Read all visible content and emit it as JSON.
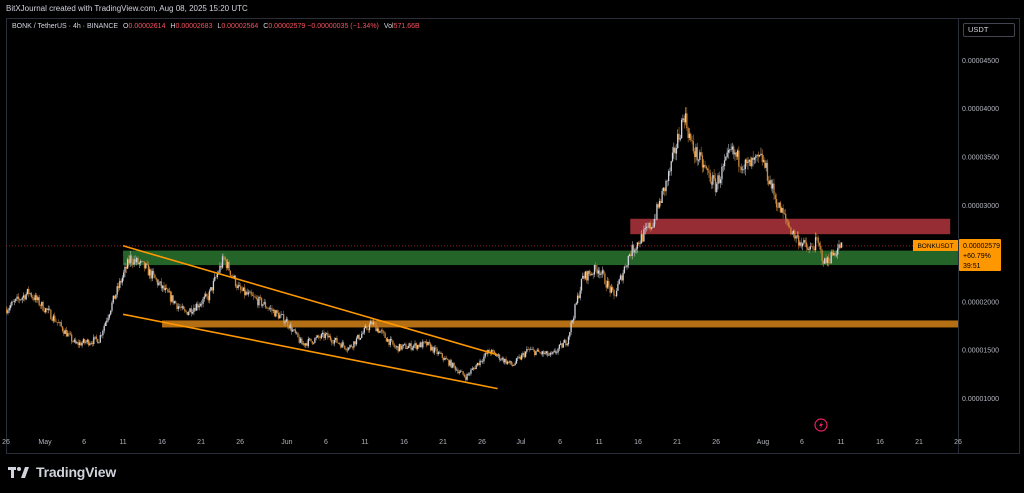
{
  "header": {
    "created_by": "BitXJournal created with TradingView.com, Aug 08, 2025 15:20 UTC"
  },
  "symbol_line": {
    "symbol": "BONK / TetherUS · 4h · BINANCE",
    "open_label": "O",
    "open": "0.00002614",
    "high_label": "H",
    "high": "0.00002683",
    "low_label": "L",
    "low": "0.00002564",
    "close_label": "C",
    "close": "0.00002579",
    "change": "−0.00000035 (−1.34%)",
    "volume_label": "Vol",
    "volume": "571.66B"
  },
  "price_axis": {
    "currency": "USDT"
  },
  "price_badge": {
    "symbol": "BONKUSDT",
    "price": "0.00002579",
    "change": "+60.79%",
    "countdown": "39:51"
  },
  "footer": {
    "brand": "TradingView"
  },
  "colors": {
    "up": "#d1d4dc",
    "down": "#d08a3b",
    "support_zone": "#2e7d32",
    "resistance_zone": "#b0353d",
    "orange_level": "#c87a16",
    "channel": "#ff9800",
    "badge": "#ff9800"
  },
  "chart_data": {
    "type": "candlestick",
    "timeframe": "4h",
    "y_ticks": [
      "0.00004500",
      "0.00004000",
      "0.00003500",
      "0.00003000",
      "0.00002500",
      "0.00002000",
      "0.00001500",
      "0.00001000"
    ],
    "y_tick_values": [
      4.5e-05,
      4e-05,
      3.5e-05,
      3e-05,
      2.5e-05,
      2e-05,
      1.5e-05,
      1e-05
    ],
    "x_ticks": [
      "26",
      "May",
      "6",
      "11",
      "16",
      "21",
      "26",
      "Jun",
      "6",
      "11",
      "16",
      "21",
      "26",
      "Jul",
      "6",
      "11",
      "16",
      "21",
      "26",
      "Aug",
      "6",
      "11",
      "16",
      "21",
      "26"
    ],
    "x_tick_dates": [
      "2025-04-26",
      "2025-05-01",
      "2025-05-06",
      "2025-05-11",
      "2025-05-16",
      "2025-05-21",
      "2025-05-26",
      "2025-06-01",
      "2025-06-06",
      "2025-06-11",
      "2025-06-16",
      "2025-06-21",
      "2025-06-26",
      "2025-07-01",
      "2025-07-06",
      "2025-07-11",
      "2025-07-16",
      "2025-07-21",
      "2025-07-26",
      "2025-08-01",
      "2025-08-06",
      "2025-08-11",
      "2025-08-16",
      "2025-08-21",
      "2025-08-26"
    ],
    "x_range": [
      "2025-04-26",
      "2025-08-26"
    ],
    "y_range": [
      6.4e-06,
      4.93e-05
    ],
    "price_path": [
      [
        "2025-04-26",
        1.92e-05
      ],
      [
        "2025-04-29",
        2.1e-05
      ],
      [
        "2025-05-02",
        1.85e-05
      ],
      [
        "2025-05-05",
        1.56e-05
      ],
      [
        "2025-05-08",
        1.61e-05
      ],
      [
        "2025-05-10",
        2.05e-05
      ],
      [
        "2025-05-12",
        2.45e-05
      ],
      [
        "2025-05-14",
        2.35e-05
      ],
      [
        "2025-05-16",
        2.15e-05
      ],
      [
        "2025-05-19",
        1.88e-05
      ],
      [
        "2025-05-22",
        2.05e-05
      ],
      [
        "2025-05-24",
        2.45e-05
      ],
      [
        "2025-05-26",
        2.12e-05
      ],
      [
        "2025-05-29",
        1.98e-05
      ],
      [
        "2025-06-01",
        1.8e-05
      ],
      [
        "2025-06-03",
        1.56e-05
      ],
      [
        "2025-06-06",
        1.65e-05
      ],
      [
        "2025-06-09",
        1.52e-05
      ],
      [
        "2025-06-12",
        1.78e-05
      ],
      [
        "2025-06-15",
        1.52e-05
      ],
      [
        "2025-06-19",
        1.56e-05
      ],
      [
        "2025-06-22",
        1.36e-05
      ],
      [
        "2025-06-24",
        1.22e-05
      ],
      [
        "2025-06-27",
        1.49e-05
      ],
      [
        "2025-06-30",
        1.34e-05
      ],
      [
        "2025-07-02",
        1.5e-05
      ],
      [
        "2025-07-05",
        1.44e-05
      ],
      [
        "2025-07-07",
        1.6e-05
      ],
      [
        "2025-07-09",
        2.25e-05
      ],
      [
        "2025-07-11",
        2.35e-05
      ],
      [
        "2025-07-13",
        2.05e-05
      ],
      [
        "2025-07-15",
        2.5e-05
      ],
      [
        "2025-07-18",
        2.82e-05
      ],
      [
        "2025-07-20",
        3.3e-05
      ],
      [
        "2025-07-22",
        3.95e-05
      ],
      [
        "2025-07-23",
        3.6e-05
      ],
      [
        "2025-07-26",
        3.2e-05
      ],
      [
        "2025-07-28",
        3.55e-05
      ],
      [
        "2025-07-30",
        3.4e-05
      ],
      [
        "2025-08-01",
        3.48e-05
      ],
      [
        "2025-08-03",
        3e-05
      ],
      [
        "2025-08-05",
        2.7e-05
      ],
      [
        "2025-08-07",
        2.53e-05
      ],
      [
        "2025-08-08",
        2.62e-05
      ],
      [
        "2025-08-09",
        2.4e-05
      ],
      [
        "2025-08-11",
        2.579e-05
      ]
    ],
    "zones": [
      {
        "kind": "resistance",
        "from": "2025-07-15",
        "to": "2025-08-25",
        "y_low": 2.7e-05,
        "y_high": 2.86e-05
      },
      {
        "kind": "support",
        "from": "2025-05-11",
        "to": "2025-08-26",
        "y_low": 2.38e-05,
        "y_high": 2.53e-05
      }
    ],
    "levels": [
      {
        "kind": "horizontal",
        "from": "2025-05-16",
        "to": "2025-08-26",
        "y": 1.77e-05
      }
    ],
    "channel_lines": [
      {
        "from": [
          "2025-05-11",
          2.58e-05
        ],
        "to": [
          "2025-06-28",
          1.45e-05
        ]
      },
      {
        "from": [
          "2025-05-11",
          1.87e-05
        ],
        "to": [
          "2025-06-28",
          1.1e-05
        ]
      }
    ],
    "last_price": 2.579e-05
  }
}
